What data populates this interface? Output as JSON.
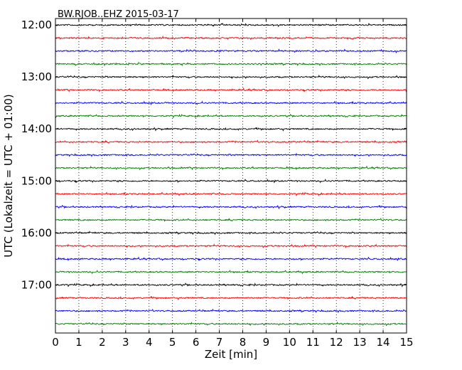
{
  "chart_data": {
    "type": "line",
    "title": "BW.RJOB..EHZ 2015-03-17",
    "xlabel": "Zeit  [min]",
    "ylabel": "UTC (Lokalzeit = UTC + 01:00)",
    "xlim": [
      0,
      15
    ],
    "xticks": [
      "0",
      "1",
      "2",
      "3",
      "4",
      "5",
      "6",
      "7",
      "8",
      "9",
      "10",
      "11",
      "12",
      "13",
      "14",
      "15"
    ],
    "yticks": [
      {
        "label": "12:00",
        "value": 0
      },
      {
        "label": "13:00",
        "value": 4
      },
      {
        "label": "14:00",
        "value": 8
      },
      {
        "label": "15:00",
        "value": 12
      },
      {
        "label": "16:00",
        "value": 16
      },
      {
        "label": "17:00",
        "value": 20
      }
    ],
    "ylim": [
      -0.5,
      23.7
    ],
    "grid": {
      "vertical": true,
      "style": "dotted"
    },
    "trace_count": 24,
    "trace_interval_min": 15,
    "colors": [
      "#000000",
      "#ff0000",
      "#0000ff",
      "#008000"
    ]
  }
}
